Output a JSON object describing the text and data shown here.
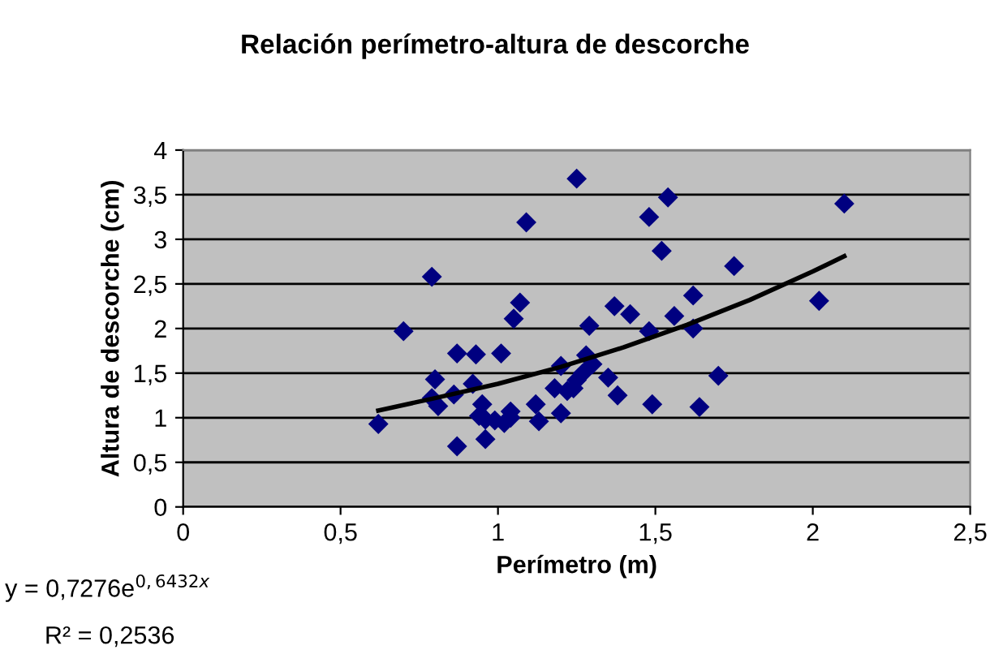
{
  "chart_data": {
    "type": "scatter",
    "title": "Relación perímetro-altura de descorche",
    "xlabel": "Perímetro (m)",
    "ylabel": "Altura de descorche (cm)",
    "xlim": [
      0,
      2.5
    ],
    "ylim": [
      0,
      4
    ],
    "xticks": [
      0,
      {
        "value": 0.5,
        "label": "0,5"
      },
      1,
      {
        "value": 1.5,
        "label": "1,5"
      },
      2,
      {
        "value": 2.5,
        "label": "2,5"
      }
    ],
    "yticks": [
      0,
      {
        "value": 0.5,
        "label": "0,5"
      },
      1,
      {
        "value": 1.5,
        "label": "1,5"
      },
      2,
      {
        "value": 2.5,
        "label": "2,5"
      },
      3,
      {
        "value": 3.5,
        "label": "3,5"
      },
      4
    ],
    "grid": "y",
    "annotations": [
      "y = 0,7276e$^{0,6432x}$",
      "R² = 0,2536"
    ],
    "series": [
      {
        "color": "#000080",
        "marker": "diamond",
        "x": [
          0.62,
          0.7,
          0.79,
          0.8,
          0.79,
          0.81,
          0.87,
          0.87,
          0.86,
          0.92,
          0.93,
          0.94,
          0.95,
          0.96,
          0.96,
          0.99,
          1.01,
          1.02,
          1.04,
          1.05,
          1.07,
          1.09,
          1.04,
          1.12,
          1.13,
          1.18,
          1.2,
          1.2,
          1.22,
          1.24,
          1.25,
          1.25,
          1.27,
          1.28,
          1.29,
          1.3,
          1.35,
          1.37,
          1.38,
          1.42,
          1.48,
          1.48,
          1.49,
          1.52,
          1.54,
          1.56,
          1.62,
          1.62,
          1.64,
          1.7,
          1.75,
          2.02,
          2.1
        ],
        "values": [
          0.93,
          1.97,
          2.58,
          1.43,
          1.22,
          1.13,
          1.72,
          0.68,
          1.26,
          1.38,
          1.71,
          1.02,
          1.15,
          0.76,
          0.98,
          0.97,
          1.72,
          0.94,
          1.0,
          2.11,
          2.29,
          3.19,
          1.07,
          1.15,
          0.96,
          1.33,
          1.05,
          1.58,
          1.3,
          1.33,
          3.68,
          1.42,
          1.5,
          1.7,
          2.03,
          1.6,
          1.45,
          2.25,
          1.25,
          2.16,
          3.25,
          1.97,
          1.15,
          2.87,
          3.47,
          2.14,
          2.37,
          2.0,
          1.12,
          1.47,
          2.7,
          2.31,
          3.4
        ]
      },
      {
        "type": "line",
        "color": "#000000",
        "marker": "none",
        "line_style": "solid",
        "x": [
          0.62,
          0.8,
          1.0,
          1.2,
          1.4,
          1.6,
          1.8,
          2.0,
          2.1
        ],
        "values": [
          1.08,
          1.22,
          1.38,
          1.57,
          1.79,
          2.04,
          2.32,
          2.64,
          2.81
        ]
      }
    ]
  }
}
